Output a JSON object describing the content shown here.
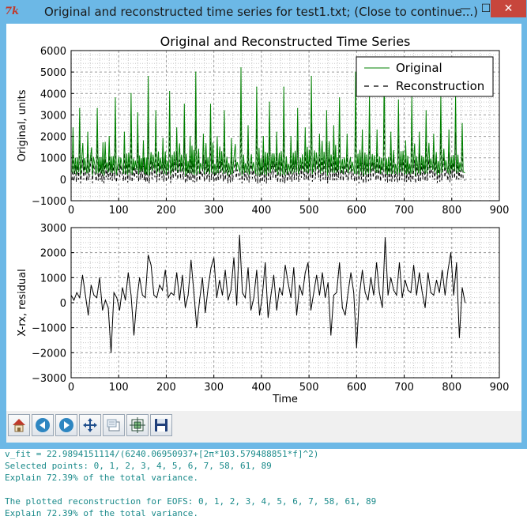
{
  "window": {
    "title": "Original and reconstructed time series for test1.txt; (Close to continue...)",
    "icon": "tk-feather-icon",
    "controls": {
      "minimize": "—",
      "maximize": "☐",
      "close": "✕"
    }
  },
  "chart_data": [
    {
      "type": "line",
      "title": "Original and Reconstructed Time Series",
      "xlabel": "",
      "ylabel": "Original, units",
      "xlim": [
        0,
        900
      ],
      "ylim": [
        -1000,
        6000
      ],
      "xticks": [
        "0",
        "100",
        "200",
        "300",
        "400",
        "500",
        "600",
        "700",
        "800",
        "900"
      ],
      "yticks": [
        "−1000",
        "0",
        "1000",
        "2000",
        "3000",
        "4000",
        "5000",
        "6000"
      ],
      "grid": true,
      "legend_position": "top-right",
      "series": [
        {
          "name": "Original",
          "color": "#008000",
          "style": "solid",
          "peaks": [
            {
              "x": 4,
              "y": 2400
            },
            {
              "x": 18,
              "y": 3300
            },
            {
              "x": 35,
              "y": 2200
            },
            {
              "x": 55,
              "y": 3300
            },
            {
              "x": 67,
              "y": 1700
            },
            {
              "x": 80,
              "y": 2000
            },
            {
              "x": 93,
              "y": 3800
            },
            {
              "x": 112,
              "y": 2200
            },
            {
              "x": 126,
              "y": 4000
            },
            {
              "x": 140,
              "y": 3100
            },
            {
              "x": 152,
              "y": 1800
            },
            {
              "x": 162,
              "y": 4800
            },
            {
              "x": 178,
              "y": 3200
            },
            {
              "x": 193,
              "y": 1900
            },
            {
              "x": 207,
              "y": 4100
            },
            {
              "x": 222,
              "y": 2400
            },
            {
              "x": 238,
              "y": 3500
            },
            {
              "x": 250,
              "y": 2000
            },
            {
              "x": 262,
              "y": 5000
            },
            {
              "x": 278,
              "y": 2100
            },
            {
              "x": 293,
              "y": 3500
            },
            {
              "x": 307,
              "y": 2000
            },
            {
              "x": 322,
              "y": 3200
            },
            {
              "x": 337,
              "y": 1900
            },
            {
              "x": 357,
              "y": 5200
            },
            {
              "x": 372,
              "y": 2500
            },
            {
              "x": 390,
              "y": 4300
            },
            {
              "x": 404,
              "y": 2000
            },
            {
              "x": 417,
              "y": 3600
            },
            {
              "x": 432,
              "y": 2200
            },
            {
              "x": 447,
              "y": 4300
            },
            {
              "x": 462,
              "y": 2000
            },
            {
              "x": 476,
              "y": 3300
            },
            {
              "x": 492,
              "y": 2400
            },
            {
              "x": 505,
              "y": 4800
            },
            {
              "x": 522,
              "y": 2100
            },
            {
              "x": 537,
              "y": 3200
            },
            {
              "x": 552,
              "y": 2500
            },
            {
              "x": 564,
              "y": 3800
            },
            {
              "x": 580,
              "y": 2100
            },
            {
              "x": 598,
              "y": 5000
            },
            {
              "x": 612,
              "y": 2300
            },
            {
              "x": 627,
              "y": 3900
            },
            {
              "x": 643,
              "y": 2300
            },
            {
              "x": 658,
              "y": 5200
            },
            {
              "x": 672,
              "y": 2200
            },
            {
              "x": 688,
              "y": 3700
            },
            {
              "x": 703,
              "y": 1800
            },
            {
              "x": 716,
              "y": 3900
            },
            {
              "x": 732,
              "y": 2200
            },
            {
              "x": 746,
              "y": 3200
            },
            {
              "x": 762,
              "y": 2100
            },
            {
              "x": 777,
              "y": 3900
            },
            {
              "x": 794,
              "y": 2300
            },
            {
              "x": 808,
              "y": 4000
            },
            {
              "x": 822,
              "y": 2600
            }
          ]
        },
        {
          "name": "Reconstruction",
          "color": "#000000",
          "style": "dashed",
          "x": [
            0,
            828
          ]
        }
      ]
    },
    {
      "type": "line",
      "title": "",
      "xlabel": "Time",
      "ylabel": "X-rx, residual",
      "xlim": [
        0,
        900
      ],
      "ylim": [
        -3000,
        3000
      ],
      "xticks": [
        "0",
        "100",
        "200",
        "300",
        "400",
        "500",
        "600",
        "700",
        "800",
        "900"
      ],
      "yticks": [
        "−3000",
        "−2000",
        "−1000",
        "0",
        "1000",
        "2000",
        "3000"
      ],
      "grid": true,
      "series": [
        {
          "name": "",
          "color": "#000000",
          "style": "solid",
          "x": [
            0,
            6,
            12,
            18,
            24,
            30,
            36,
            42,
            48,
            54,
            60,
            66,
            72,
            78,
            84,
            90,
            96,
            102,
            108,
            114,
            120,
            126,
            132,
            138,
            144,
            150,
            156,
            162,
            168,
            174,
            180,
            186,
            192,
            198,
            204,
            210,
            216,
            222,
            228,
            234,
            240,
            246,
            252,
            258,
            264,
            270,
            276,
            282,
            288,
            294,
            300,
            306,
            312,
            318,
            324,
            330,
            336,
            342,
            348,
            354,
            360,
            366,
            372,
            378,
            384,
            390,
            396,
            402,
            408,
            414,
            420,
            426,
            432,
            438,
            444,
            450,
            456,
            462,
            468,
            474,
            480,
            486,
            492,
            498,
            504,
            510,
            516,
            522,
            528,
            534,
            540,
            546,
            552,
            558,
            564,
            570,
            576,
            582,
            588,
            594,
            600,
            606,
            612,
            618,
            624,
            630,
            636,
            642,
            648,
            654,
            660,
            666,
            672,
            678,
            684,
            690,
            696,
            702,
            708,
            714,
            720,
            726,
            732,
            738,
            744,
            750,
            756,
            762,
            768,
            774,
            780,
            786,
            792,
            798,
            804,
            810,
            816,
            822,
            828
          ],
          "y": [
            300,
            100,
            400,
            200,
            1100,
            300,
            -500,
            700,
            300,
            200,
            1000,
            -300,
            100,
            -200,
            -2000,
            400,
            200,
            -300,
            600,
            100,
            1200,
            300,
            -1300,
            100,
            1000,
            300,
            200,
            1900,
            1500,
            300,
            200,
            700,
            500,
            1300,
            200,
            400,
            300,
            1200,
            100,
            1100,
            -200,
            300,
            1700,
            400,
            -1000,
            100,
            1000,
            -400,
            600,
            1400,
            1800,
            200,
            900,
            300,
            1300,
            100,
            500,
            1800,
            -100,
            2700,
            400,
            200,
            1400,
            -300,
            200,
            1300,
            -500,
            300,
            1600,
            -600,
            300,
            1100,
            -300,
            600,
            300,
            1500,
            800,
            200,
            1400,
            -500,
            700,
            300,
            1200,
            1600,
            -300,
            400,
            1100,
            300,
            1200,
            200,
            800,
            -1300,
            300,
            400,
            1600,
            -200,
            -500,
            400,
            1200,
            400,
            -1800,
            300,
            1300,
            400,
            100,
            1000,
            300,
            1600,
            400,
            -200,
            2600,
            300,
            1000,
            500,
            300,
            1600,
            200,
            900,
            500,
            400,
            1500,
            300,
            1200,
            400,
            -200,
            1200,
            400,
            300,
            900,
            400,
            1300,
            300,
            1300,
            2000,
            300,
            1600,
            -1400,
            600,
            0
          ]
        }
      ]
    }
  ],
  "toolbar": {
    "buttons": [
      {
        "name": "home-button",
        "icon": "home-icon",
        "label": "Home"
      },
      {
        "name": "back-button",
        "icon": "arrow-left-icon",
        "label": "Back"
      },
      {
        "name": "forward-button",
        "icon": "arrow-right-icon",
        "label": "Forward"
      },
      {
        "name": "pan-button",
        "icon": "move-arrows-icon",
        "label": "Pan"
      },
      {
        "name": "zoom-button",
        "icon": "zoom-rect-icon",
        "label": "Zoom"
      },
      {
        "name": "subplots-button",
        "icon": "subplots-icon",
        "label": "Configure subplots"
      },
      {
        "name": "save-button",
        "icon": "floppy-disk-icon",
        "label": "Save"
      }
    ]
  },
  "console": {
    "lines": [
      "v_fit = 22.9894151114/(6240.06950937+[2π*103.579488851*f]^2)",
      "Selected points: 0, 1, 2, 3, 4, 5, 6, 7, 58, 61, 89",
      "Explain 72.39% of the total variance.",
      "",
      "The plotted reconstruction for EOFS: 0, 1, 2, 3, 4, 5, 6, 7, 58, 61, 89",
      "Explain 72.39% of the total variance."
    ]
  }
}
